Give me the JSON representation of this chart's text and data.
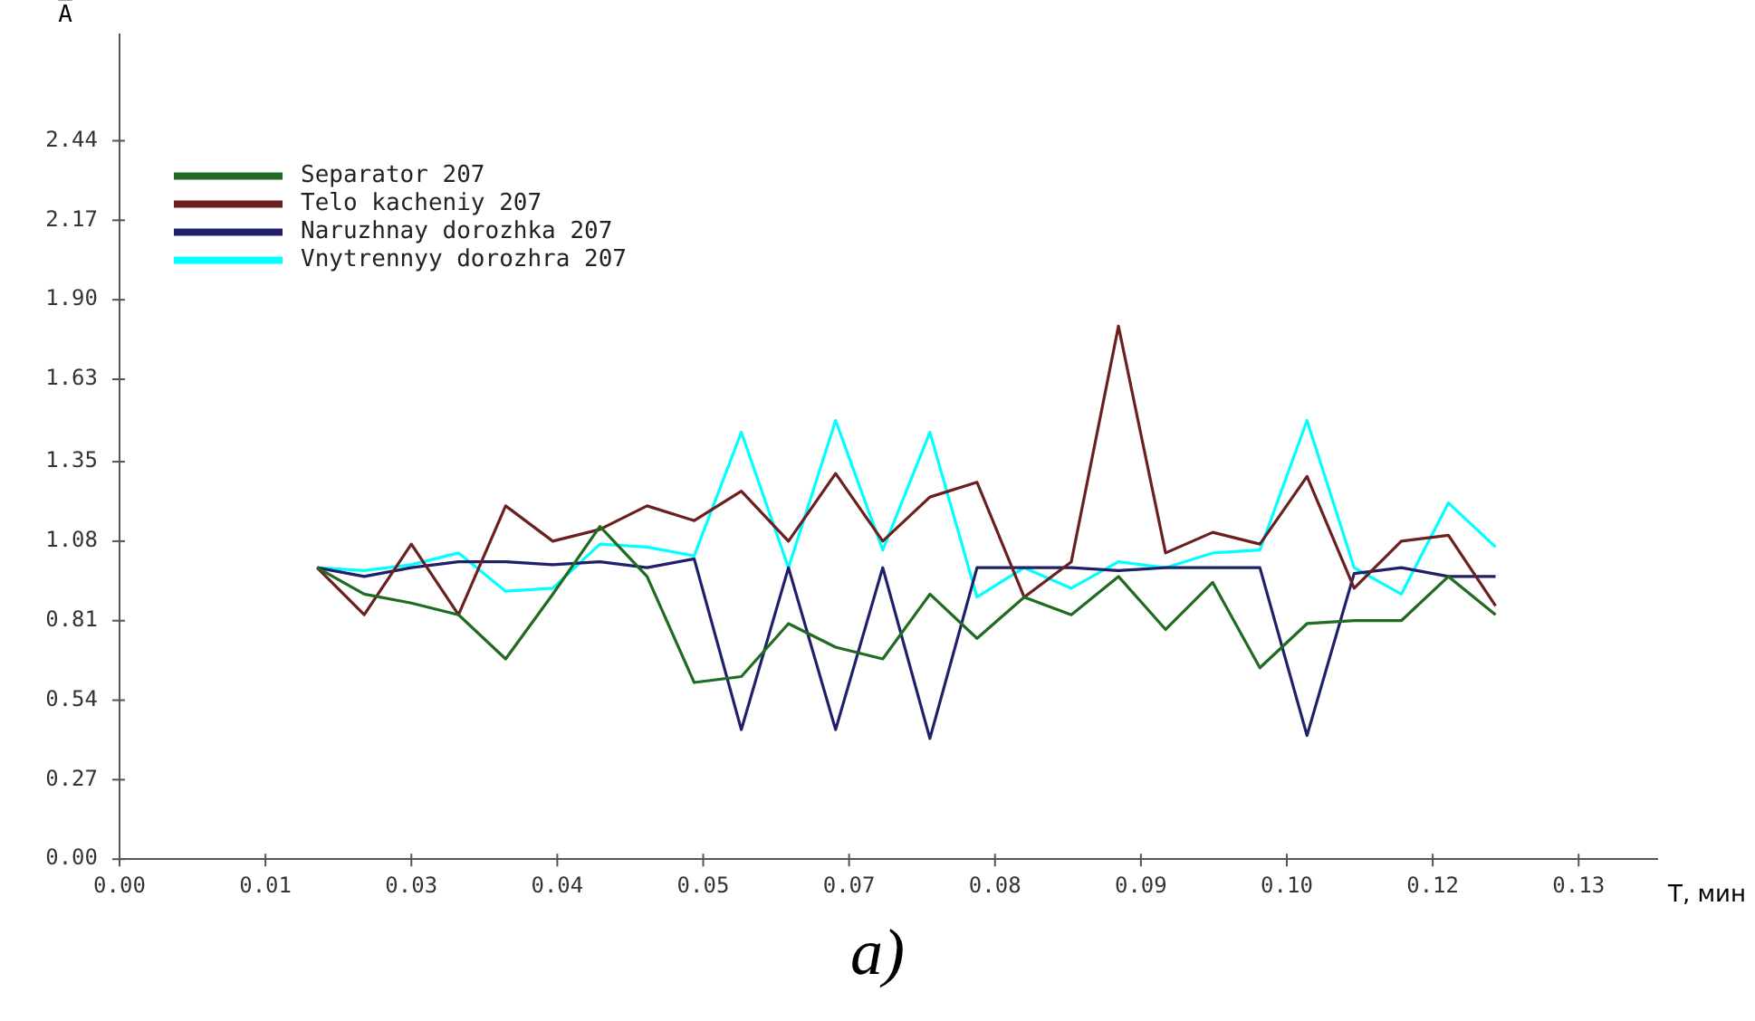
{
  "chart_data": {
    "type": "line",
    "xlabel": "T, мин",
    "ylabel": "A̅",
    "annotations": [
      "a)"
    ],
    "x": [
      0.0176,
      0.0218,
      0.026,
      0.0302,
      0.0344,
      0.0386,
      0.0428,
      0.047,
      0.0512,
      0.0554,
      0.0596,
      0.0638,
      0.068,
      0.0722,
      0.0764,
      0.0806,
      0.0848,
      0.089,
      0.0932,
      0.0974,
      0.1016,
      0.1058,
      0.11,
      0.1142,
      0.1184,
      0.1226
    ],
    "series": [
      {
        "name": "Separator 207",
        "color": "#1f6b1f",
        "values": [
          0.99,
          0.9,
          0.87,
          0.83,
          0.68,
          0.9,
          1.13,
          0.96,
          0.6,
          0.62,
          0.8,
          0.72,
          0.68,
          0.9,
          0.75,
          0.89,
          0.83,
          0.96,
          0.78,
          0.94,
          0.65,
          0.8,
          0.81,
          0.81,
          0.96,
          0.83
        ]
      },
      {
        "name": "Telo kacheniy 207",
        "color": "#6b1f1f",
        "values": [
          0.99,
          0.83,
          1.07,
          0.83,
          1.2,
          1.08,
          1.12,
          1.2,
          1.15,
          1.25,
          1.08,
          1.31,
          1.08,
          1.23,
          1.28,
          0.89,
          1.01,
          1.81,
          1.04,
          1.11,
          1.07,
          1.3,
          0.92,
          1.08,
          1.1,
          0.86
        ]
      },
      {
        "name": "Naruzhnay dorozhka 207",
        "color": "#1f1f6b",
        "values": [
          0.99,
          0.96,
          0.99,
          1.01,
          1.01,
          1.0,
          1.01,
          0.99,
          1.02,
          0.44,
          0.99,
          0.44,
          0.99,
          0.41,
          0.99,
          0.99,
          0.99,
          0.98,
          0.99,
          0.99,
          0.99,
          0.42,
          0.97,
          0.99,
          0.96,
          0.96
        ]
      },
      {
        "name": "Vnytrennyy dorozhra 207",
        "color": "#00ffff",
        "values": [
          0.99,
          0.98,
          1.0,
          1.04,
          0.91,
          0.92,
          1.07,
          1.06,
          1.03,
          1.45,
          0.99,
          1.49,
          1.05,
          1.45,
          0.89,
          0.99,
          0.92,
          1.01,
          0.99,
          1.04,
          1.05,
          1.49,
          0.99,
          0.9,
          1.21,
          1.06
        ]
      }
    ],
    "xlim": [
      0,
      0.137
    ],
    "xticks": [
      {
        "value": 0,
        "label": "0.00"
      },
      {
        "value": 0.013,
        "label": "0.01"
      },
      {
        "value": 0.026,
        "label": "0.03"
      },
      {
        "value": 0.039,
        "label": "0.04"
      },
      {
        "value": 0.052,
        "label": "0.05"
      },
      {
        "value": 0.065,
        "label": "0.07"
      },
      {
        "value": 0.078,
        "label": "0.08"
      },
      {
        "value": 0.091,
        "label": "0.09"
      },
      {
        "value": 0.104,
        "label": "0.10"
      },
      {
        "value": 0.117,
        "label": "0.12"
      },
      0.13
    ],
    "ylim": [
      0,
      2.8
    ],
    "yticks": [
      {
        "value": 0,
        "label": "0.00"
      },
      0.27,
      0.54,
      0.81,
      1.08,
      1.35,
      1.63,
      {
        "value": 1.9,
        "label": "1.90"
      },
      2.17,
      2.44
    ],
    "grid": false,
    "legend": "top left",
    "marker": "none",
    "line_style": "solid"
  }
}
